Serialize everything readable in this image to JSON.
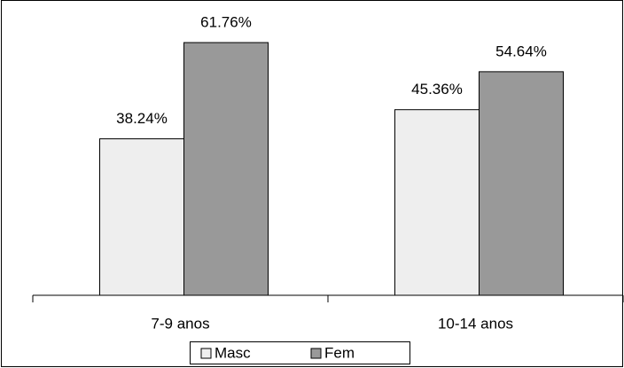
{
  "chart_data": {
    "type": "bar",
    "categories": [
      "7-9 anos",
      "10-14 anos"
    ],
    "series": [
      {
        "name": "Masc",
        "color": "#eeeeee",
        "values": [
          38.24,
          45.36
        ],
        "value_labels": [
          "38.24%",
          "45.36%"
        ]
      },
      {
        "name": "Fem",
        "color": "#999999",
        "values": [
          61.76,
          54.64
        ],
        "value_labels": [
          "61.76%",
          "54.64%"
        ]
      }
    ],
    "ylim": [
      0,
      70
    ],
    "legend": "bottom"
  }
}
